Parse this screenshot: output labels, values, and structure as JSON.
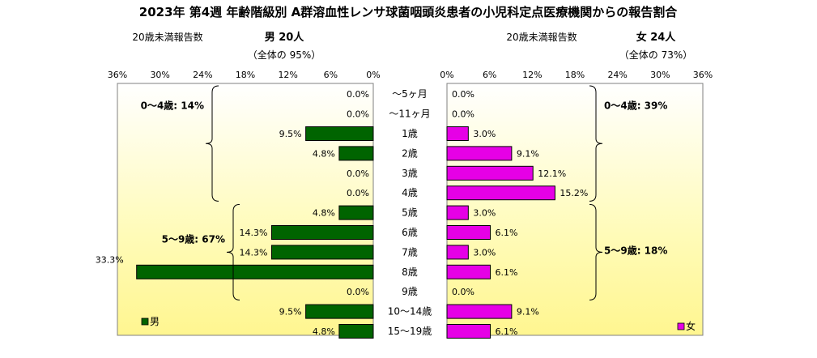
{
  "chart_data": {
    "type": "bar",
    "title": "2023年 第4週  年齢階級別 A群溶血性レンサ球菌咽頭炎患者の小児科定点医療機関からの報告割合",
    "categories": [
      "～5ヶ月",
      "～11ヶ月",
      "1歳",
      "2歳",
      "3歳",
      "4歳",
      "5歳",
      "6歳",
      "7歳",
      "8歳",
      "9歳",
      "10～14歳",
      "15～19歳"
    ],
    "axis": {
      "ticks": [
        "36%",
        "30%",
        "24%",
        "18%",
        "12%",
        "6%",
        "0%"
      ],
      "ticks_right": [
        "0%",
        "6%",
        "12%",
        "18%",
        "24%",
        "30%",
        "36%"
      ],
      "max": 36,
      "unit": "%"
    },
    "series": [
      {
        "name": "男",
        "side": "left",
        "color": "#006400",
        "values": [
          0.0,
          0.0,
          9.5,
          4.8,
          0.0,
          0.0,
          4.8,
          14.3,
          14.3,
          33.3,
          0.0,
          9.5,
          4.8
        ],
        "labels": [
          "0.0%",
          "0.0%",
          "9.5%",
          "4.8%",
          "0.0%",
          "0.0%",
          "4.8%",
          "14.3%",
          "14.3%",
          "33.3%",
          "0.0%",
          "9.5%",
          "4.8%"
        ],
        "header": "男  20人",
        "subheader": "20歳未満報告数",
        "overall": "（全体の  95%）",
        "groups": [
          {
            "label": "0～4歳: 14%",
            "from": 0,
            "to": 5
          },
          {
            "label": "5～9歳: 67%",
            "from": 6,
            "to": 10
          }
        ]
      },
      {
        "name": "女",
        "side": "right",
        "color": "#e600e6",
        "values": [
          0.0,
          0.0,
          3.0,
          9.1,
          12.1,
          15.2,
          3.0,
          6.1,
          3.0,
          6.1,
          0.0,
          9.1,
          6.1
        ],
        "labels": [
          "0.0%",
          "0.0%",
          "3.0%",
          "9.1%",
          "12.1%",
          "15.2%",
          "3.0%",
          "6.1%",
          "3.0%",
          "6.1%",
          "0.0%",
          "9.1%",
          "6.1%"
        ],
        "header": "女  24人",
        "subheader": "20歳未満報告数",
        "overall": "（全体の  73%）",
        "groups": [
          {
            "label": "0～4歳: 39%",
            "from": 0,
            "to": 5
          },
          {
            "label": "5～9歳: 18%",
            "from": 6,
            "to": 10
          }
        ]
      }
    ],
    "legend": [
      "男",
      "女"
    ]
  }
}
